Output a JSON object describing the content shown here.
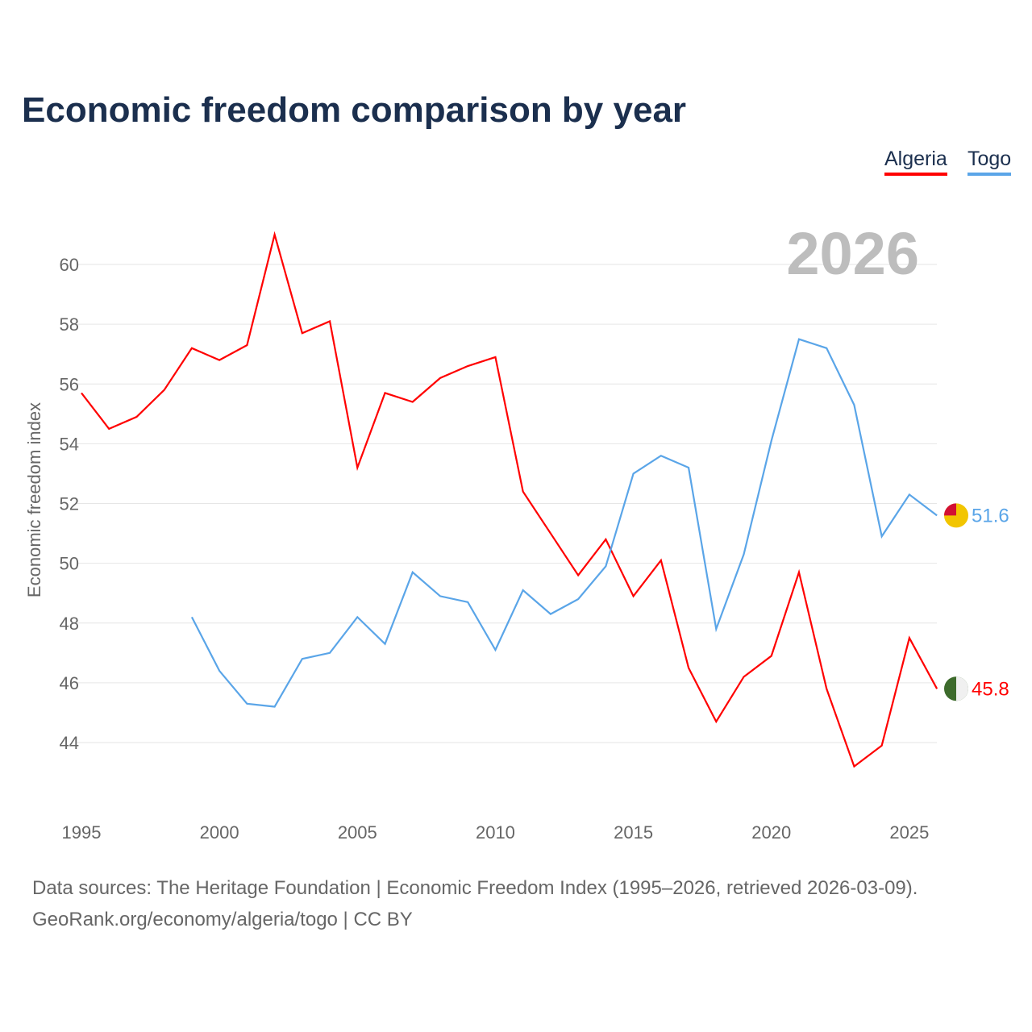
{
  "chart_data": {
    "type": "line",
    "title": "Economic freedom comparison by year",
    "ylabel": "Economic freedom index",
    "xlabel": "",
    "ylim": [
      42,
      61.5
    ],
    "xlim": [
      1995,
      2026
    ],
    "yticks": [
      44,
      46,
      48,
      50,
      52,
      54,
      56,
      58,
      60
    ],
    "xticks": [
      1995,
      2000,
      2005,
      2010,
      2015,
      2020,
      2025
    ],
    "watermark_year": "2026",
    "legend": [
      "Algeria",
      "Togo"
    ],
    "series": [
      {
        "name": "Algeria",
        "color": "#ff0000",
        "end_label": "45.8",
        "start": 1995,
        "values": [
          55.7,
          54.5,
          54.9,
          55.8,
          57.2,
          56.8,
          57.3,
          61.0,
          57.7,
          58.1,
          53.2,
          55.7,
          55.4,
          56.2,
          56.6,
          56.9,
          52.4,
          51.0,
          49.6,
          50.8,
          48.9,
          50.1,
          46.5,
          44.7,
          46.2,
          46.9,
          49.7,
          45.8,
          43.2,
          43.9,
          47.5,
          45.8
        ]
      },
      {
        "name": "Togo",
        "color": "#5aa5e8",
        "end_label": "51.6",
        "start": 1999,
        "values": [
          48.2,
          46.4,
          45.3,
          45.2,
          46.8,
          47.0,
          48.2,
          47.3,
          49.7,
          48.9,
          48.7,
          47.1,
          49.1,
          48.3,
          48.8,
          49.9,
          53.0,
          53.6,
          53.2,
          47.8,
          50.3,
          54.1,
          57.5,
          57.2,
          55.3,
          50.9,
          52.3,
          51.6
        ]
      }
    ]
  },
  "footer": {
    "line1": "Data sources: The Heritage Foundation | Economic Freedom Index (1995–2026, retrieved 2026-03-09).",
    "line2": "GeoRank.org/economy/algeria/togo | CC BY"
  }
}
